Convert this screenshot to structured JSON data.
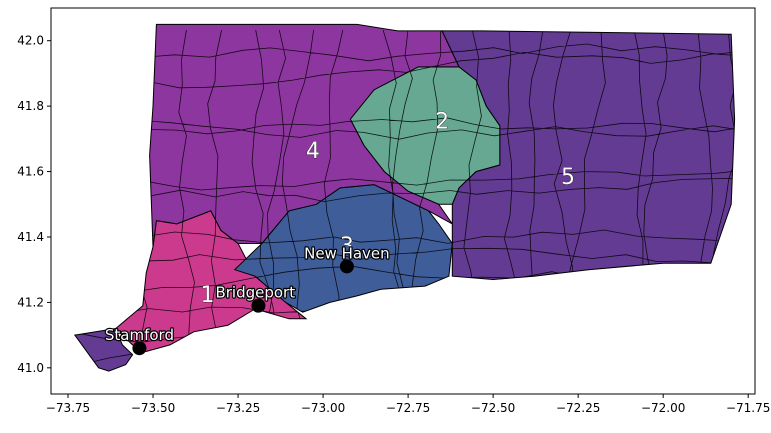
{
  "chart_data": {
    "type": "map",
    "xlim": [
      -73.8,
      -71.73
    ],
    "ylim": [
      40.92,
      42.1
    ],
    "x_ticks": [
      -73.75,
      -73.5,
      -73.25,
      -73.0,
      -72.75,
      -72.5,
      -72.25,
      -72.0,
      -71.75
    ],
    "x_tick_labels": [
      "−73.75",
      "−73.50",
      "−73.25",
      "−73.00",
      "−72.75",
      "−72.50",
      "−72.25",
      "−72.00",
      "−71.75"
    ],
    "y_ticks": [
      41.0,
      41.2,
      41.4,
      41.6,
      41.8,
      42.0
    ],
    "y_tick_labels": [
      "41.0",
      "41.2",
      "41.4",
      "41.6",
      "41.8",
      "42.0"
    ],
    "grid": false,
    "districts": [
      {
        "label": "1",
        "color": "#cc3a8e",
        "label_lon": -73.34,
        "label_lat": 41.22,
        "polygon": [
          [
            -73.49,
            41.45
          ],
          [
            -73.43,
            41.44
          ],
          [
            -73.33,
            41.48
          ],
          [
            -73.3,
            41.42
          ],
          [
            -73.25,
            41.38
          ],
          [
            -73.2,
            41.28
          ],
          [
            -73.11,
            41.2
          ],
          [
            -73.05,
            41.15
          ],
          [
            -73.1,
            41.15
          ],
          [
            -73.2,
            41.18
          ],
          [
            -73.28,
            41.13
          ],
          [
            -73.38,
            41.11
          ],
          [
            -73.45,
            41.07
          ],
          [
            -73.52,
            41.05
          ],
          [
            -73.56,
            41.07
          ],
          [
            -73.61,
            41.12
          ],
          [
            -73.53,
            41.19
          ],
          [
            -73.52,
            41.29
          ],
          [
            -73.5,
            41.37
          ]
        ]
      },
      {
        "label": "2",
        "color": "#66a892",
        "label_lon": -72.65,
        "label_lat": 41.75,
        "polygon": [
          [
            -72.9,
            41.81
          ],
          [
            -72.85,
            41.85
          ],
          [
            -72.78,
            41.9
          ],
          [
            -72.72,
            41.92
          ],
          [
            -72.6,
            41.92
          ],
          [
            -72.55,
            41.88
          ],
          [
            -72.52,
            41.8
          ],
          [
            -72.48,
            41.74
          ],
          [
            -72.48,
            41.62
          ],
          [
            -72.55,
            41.6
          ],
          [
            -72.6,
            41.55
          ],
          [
            -72.62,
            41.5
          ],
          [
            -72.66,
            41.5
          ],
          [
            -72.75,
            41.54
          ],
          [
            -72.82,
            41.6
          ],
          [
            -72.88,
            41.68
          ],
          [
            -72.92,
            41.76
          ]
        ]
      },
      {
        "label": "3",
        "color": "#3f5d99",
        "label_lon": -72.93,
        "label_lat": 41.37,
        "polygon": [
          [
            -73.18,
            41.38
          ],
          [
            -73.1,
            41.48
          ],
          [
            -73.02,
            41.5
          ],
          [
            -72.95,
            41.55
          ],
          [
            -72.85,
            41.56
          ],
          [
            -72.77,
            41.52
          ],
          [
            -72.69,
            41.48
          ],
          [
            -72.66,
            41.44
          ],
          [
            -72.62,
            41.38
          ],
          [
            -72.63,
            41.28
          ],
          [
            -72.7,
            41.25
          ],
          [
            -72.83,
            41.24
          ],
          [
            -72.9,
            41.22
          ],
          [
            -72.98,
            41.2
          ],
          [
            -73.06,
            41.17
          ],
          [
            -73.11,
            41.2
          ],
          [
            -73.2,
            41.28
          ],
          [
            -73.26,
            41.3
          ]
        ]
      },
      {
        "label": "4",
        "color": "#8e369f",
        "label_lon": -73.03,
        "label_lat": 41.66,
        "polygon": [
          [
            -73.49,
            42.05
          ],
          [
            -72.9,
            42.05
          ],
          [
            -72.78,
            42.03
          ],
          [
            -72.65,
            42.03
          ],
          [
            -72.6,
            41.92
          ],
          [
            -72.72,
            41.92
          ],
          [
            -72.85,
            41.85
          ],
          [
            -72.92,
            41.76
          ],
          [
            -72.88,
            41.68
          ],
          [
            -72.82,
            41.6
          ],
          [
            -72.75,
            41.54
          ],
          [
            -72.66,
            41.5
          ],
          [
            -72.62,
            41.44
          ],
          [
            -72.69,
            41.48
          ],
          [
            -72.77,
            41.52
          ],
          [
            -72.85,
            41.56
          ],
          [
            -72.95,
            41.55
          ],
          [
            -73.02,
            41.5
          ],
          [
            -73.1,
            41.48
          ],
          [
            -73.18,
            41.38
          ],
          [
            -73.25,
            41.38
          ],
          [
            -73.3,
            41.42
          ],
          [
            -73.33,
            41.48
          ],
          [
            -73.43,
            41.44
          ],
          [
            -73.49,
            41.45
          ],
          [
            -73.5,
            41.37
          ],
          [
            -73.51,
            41.65
          ],
          [
            -73.5,
            41.8
          ]
        ]
      },
      {
        "label": "5",
        "color": "#633b92",
        "label_lon": -72.28,
        "label_lat": 41.58,
        "polygon": [
          [
            -72.53,
            42.03
          ],
          [
            -71.8,
            42.02
          ],
          [
            -71.79,
            41.76
          ],
          [
            -71.8,
            41.5
          ],
          [
            -71.86,
            41.32
          ],
          [
            -72.0,
            41.32
          ],
          [
            -72.22,
            41.3
          ],
          [
            -72.38,
            41.28
          ],
          [
            -72.5,
            41.27
          ],
          [
            -72.62,
            41.28
          ],
          [
            -72.62,
            41.38
          ],
          [
            -72.62,
            41.5
          ],
          [
            -72.6,
            41.55
          ],
          [
            -72.55,
            41.6
          ],
          [
            -72.48,
            41.62
          ],
          [
            -72.48,
            41.74
          ],
          [
            -72.52,
            41.8
          ],
          [
            -72.55,
            41.88
          ],
          [
            -72.6,
            41.92
          ],
          [
            -72.65,
            42.03
          ]
        ]
      },
      {
        "label": "",
        "color": "#633b92",
        "label_lon": null,
        "label_lat": null,
        "polygon": [
          [
            -73.73,
            41.1
          ],
          [
            -73.66,
            41.0
          ],
          [
            -73.63,
            40.99
          ],
          [
            -73.58,
            41.01
          ],
          [
            -73.56,
            41.04
          ],
          [
            -73.59,
            41.07
          ],
          [
            -73.61,
            41.12
          ]
        ]
      }
    ],
    "cities": [
      {
        "name": "Stamford",
        "lon": -73.54,
        "lat": 41.06
      },
      {
        "name": "Bridgeport",
        "lon": -73.19,
        "lat": 41.19
      },
      {
        "name": "New Haven",
        "lon": -72.93,
        "lat": 41.31
      }
    ]
  }
}
